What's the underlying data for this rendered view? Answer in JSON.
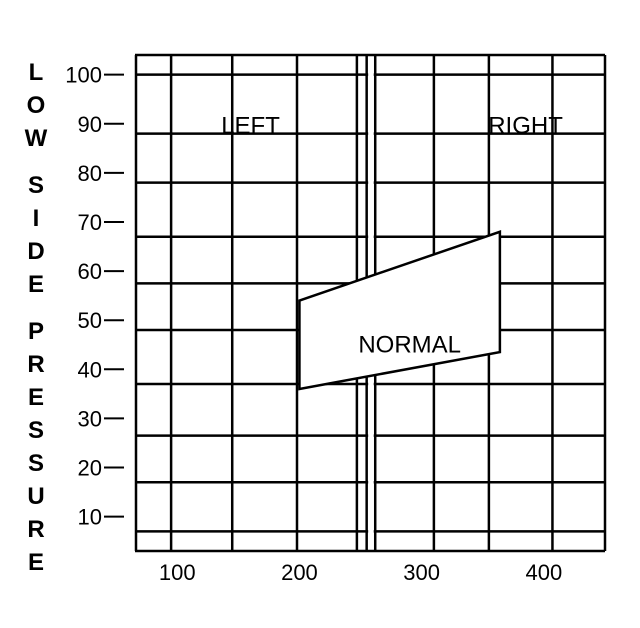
{
  "chart_data": {
    "type": "area",
    "title": "",
    "xlabel": "",
    "ylabel": "LOW SIDE PRESSURE",
    "xlim": [
      45,
      450
    ],
    "ylim": [
      3,
      104
    ],
    "x_ticks": [
      100,
      200,
      300,
      400
    ],
    "y_ticks": [
      10,
      20,
      30,
      40,
      50,
      60,
      70,
      80,
      90,
      100
    ],
    "x_tick_labels": [
      "100",
      "200",
      "300",
      "400"
    ],
    "y_tick_labels": [
      "10",
      "20",
      "30",
      "40",
      "50",
      "60",
      "70",
      "80",
      "90",
      "100"
    ],
    "x_grid": [
      95,
      145,
      198,
      247,
      310,
      355,
      407
    ],
    "y_grid": [
      7,
      17,
      26.5,
      37,
      48,
      57.5,
      67,
      78,
      88,
      100
    ],
    "grid": true,
    "divider_x": [
      255,
      262
    ],
    "regions": [
      {
        "label": "LEFT",
        "x": 160,
        "y": 88
      },
      {
        "label": "RIGHT",
        "x": 385,
        "y": 88
      }
    ],
    "band": {
      "label": "NORMAL",
      "upper": [
        [
          200,
          54
        ],
        [
          364,
          68
        ]
      ],
      "lower": [
        [
          200,
          36
        ],
        [
          364,
          43.5
        ]
      ]
    }
  }
}
